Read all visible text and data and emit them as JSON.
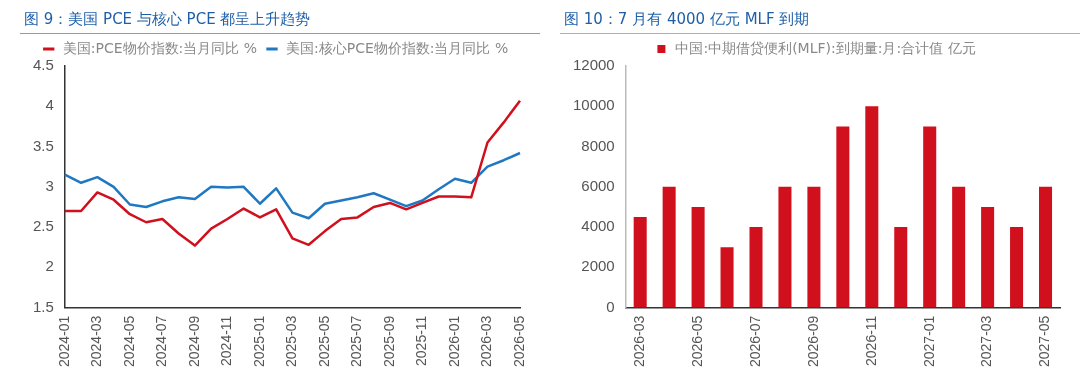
{
  "chart_data": [
    {
      "type": "line",
      "title": "图 9：美国 PCE 与核心 PCE 都呈上升趋势",
      "categories": [
        "2024-01",
        null,
        "2024-03",
        null,
        "2024-05",
        null,
        "2024-07",
        null,
        "2024-09",
        null,
        "2024-11",
        null,
        "2025-01",
        null,
        "2025-03",
        null,
        "2025-05",
        null,
        "2025-07",
        null,
        "2025-09",
        null,
        "2025-11",
        null,
        "2026-01",
        null,
        "2026-03",
        null,
        "2026-05"
      ],
      "series": [
        {
          "name": "美国:PCE物价指数:当月同比 %",
          "color": "#d0101c",
          "values": [
            2.7,
            2.7,
            2.93,
            2.84,
            2.66,
            2.56,
            2.6,
            2.42,
            2.27,
            2.48,
            2.6,
            2.73,
            2.62,
            2.72,
            2.36,
            2.28,
            2.45,
            2.6,
            2.62,
            2.75,
            2.8,
            2.72,
            2.8,
            2.88,
            2.88,
            2.87,
            3.55,
            3.8,
            4.07
          ]
        },
        {
          "name": "美国:核心PCE物价指数:当月同比 %",
          "color": "#1f78c1",
          "values": [
            3.15,
            3.05,
            3.12,
            3.0,
            2.78,
            2.75,
            2.82,
            2.87,
            2.85,
            3.0,
            2.99,
            3.0,
            2.79,
            2.98,
            2.68,
            2.61,
            2.79,
            2.83,
            2.87,
            2.92,
            2.84,
            2.76,
            2.83,
            2.97,
            3.1,
            3.05,
            3.25,
            3.33,
            3.42
          ]
        }
      ],
      "ylim": [
        1.5,
        4.5
      ],
      "yticks": [
        1.5,
        2,
        2.5,
        3,
        3.5,
        4,
        4.5
      ],
      "legend": "top",
      "marker": "none",
      "grid": false
    },
    {
      "type": "bar",
      "title": "图 10：7 月有 4000 亿元 MLF 到期",
      "categories": [
        "2026-03",
        null,
        "2026-05",
        null,
        "2026-07",
        null,
        "2026-09",
        null,
        "2026-11",
        null,
        "2027-01",
        null,
        "2027-03",
        null,
        "2027-05"
      ],
      "series": [
        {
          "name": "中国:中期借贷便利(MLF):到期量:月:合计值 亿元",
          "color": "#d0101c",
          "values": [
            4500,
            6000,
            5000,
            3000,
            4000,
            6000,
            6000,
            9000,
            10000,
            4000,
            9000,
            6000,
            5000,
            4000,
            6000
          ]
        }
      ],
      "ylim": [
        0,
        12000
      ],
      "yticks": [
        0,
        2000,
        4000,
        6000,
        8000,
        10000,
        12000
      ],
      "legend": "top",
      "grid": false
    }
  ]
}
